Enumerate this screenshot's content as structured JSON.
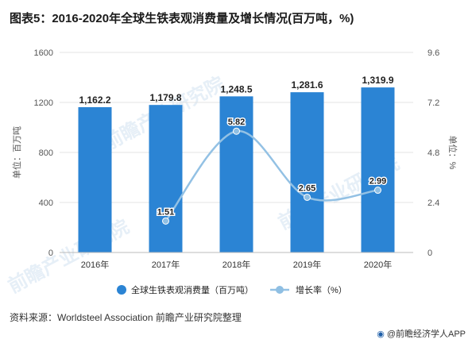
{
  "title": "图表5：2016-2020年全球生铁表观消费量及增长情况(百万吨，%)",
  "source": "资料来源：Worldsteel Association 前瞻产业研究院整理",
  "brand": "@前瞻经济学人APP",
  "watermark": "前瞻产业研究院",
  "colors": {
    "bar": "#2b84d4",
    "line": "#93c1e4",
    "line_marker": "#8fbfe3",
    "grid": "#e3e3e3",
    "axis_text": "#555555"
  },
  "chart_data": {
    "type": "bar",
    "categories": [
      "2016年",
      "2017年",
      "2018年",
      "2019年",
      "2020年"
    ],
    "series": [
      {
        "name": "全球生铁表观消费量（百万吨）",
        "type": "bar",
        "axis": "left",
        "values": [
          1162.2,
          1179.8,
          1248.5,
          1281.6,
          1319.9
        ],
        "labels": [
          "1,162.2",
          "1,179.8",
          "1,248.5",
          "1,281.6",
          "1,319.9"
        ]
      },
      {
        "name": "增长率（%）",
        "type": "line",
        "axis": "right",
        "values": [
          null,
          1.51,
          5.82,
          2.65,
          2.99
        ],
        "labels": [
          "",
          "1.51",
          "5.82",
          "2.65",
          "2.99"
        ]
      }
    ],
    "ylabel": "单位：百万吨",
    "y2label": "单位：%",
    "ylim": [
      0,
      1600
    ],
    "y2lim": [
      0,
      9.6
    ],
    "yticks": [
      0,
      400,
      800,
      1200,
      1600
    ],
    "y2ticks": [
      "0",
      "2.4",
      "4.8",
      "7.2",
      "9.6"
    ],
    "grid": true,
    "legend": "bottom"
  }
}
